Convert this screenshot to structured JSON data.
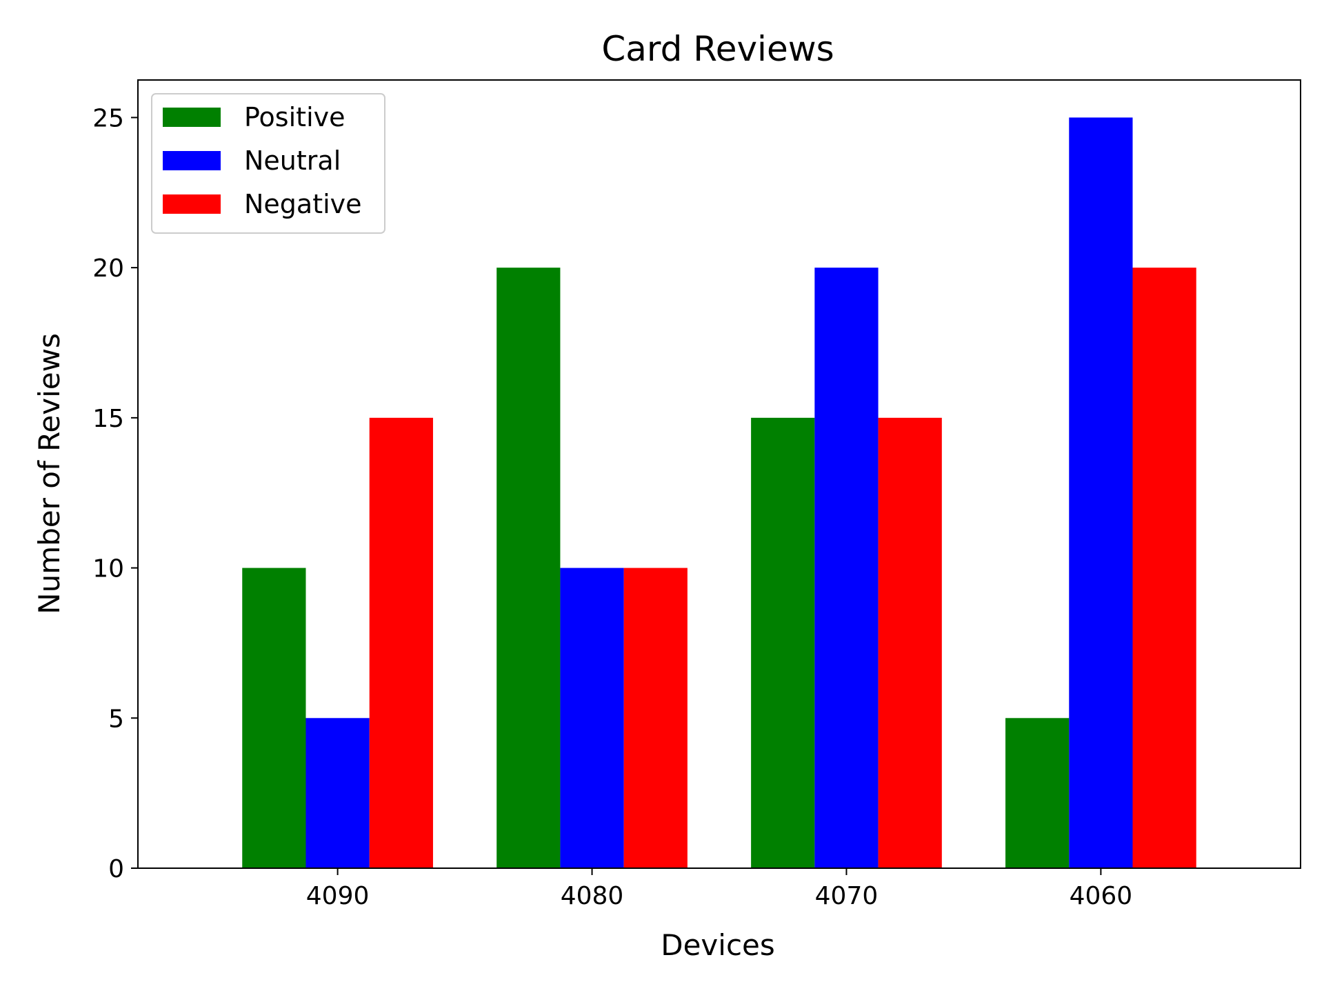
{
  "chart_data": {
    "type": "bar",
    "title": "Card Reviews",
    "xlabel": "Devices",
    "ylabel": "Number of Reviews",
    "categories": [
      "4090",
      "4080",
      "4070",
      "4060"
    ],
    "series": [
      {
        "name": "Positive",
        "color": "#008000",
        "values": [
          10,
          20,
          15,
          5
        ]
      },
      {
        "name": "Neutral",
        "color": "#0000ff",
        "values": [
          5,
          10,
          20,
          25
        ]
      },
      {
        "name": "Negative",
        "color": "#ff0000",
        "values": [
          15,
          10,
          15,
          20
        ]
      }
    ],
    "ylim": [
      0,
      26.25
    ],
    "yticks": [
      0,
      5,
      10,
      15,
      20,
      25
    ],
    "legend_position": "top-left",
    "grid": false
  }
}
